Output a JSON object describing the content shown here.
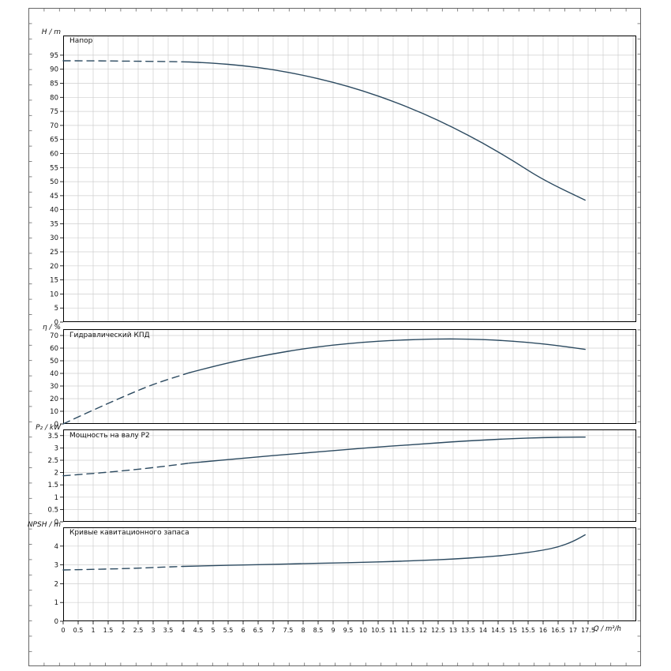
{
  "figure": {
    "bg": "#ffffff",
    "curve_color": "#2c4a60",
    "grid_color": "#cfcfcf",
    "axis_color": "#000000",
    "frame_color": "#666666"
  },
  "x_axis": {
    "label": "Q / m³/h",
    "min": 0,
    "max": 17.5,
    "tick_step": 0.5,
    "tick_labels": [
      "0",
      "0.5",
      "1",
      "1.5",
      "2",
      "2.5",
      "3",
      "3.5",
      "4",
      "4.5",
      "5",
      "5.5",
      "6",
      "6.5",
      "7",
      "7.5",
      "8",
      "8.5",
      "9",
      "9.5",
      "10",
      "10.5",
      "11",
      "11.5",
      "12",
      "12.5",
      "13",
      "13.5",
      "14",
      "14.5",
      "15",
      "15.5",
      "16",
      "16.5",
      "17",
      "17.5"
    ]
  },
  "chart_data": [
    {
      "type": "line",
      "title": "Напор",
      "ylabel": "H / m",
      "ylim": [
        0,
        102
      ],
      "grid": true,
      "yticks": [
        "0",
        "5",
        "10",
        "15",
        "20",
        "25",
        "30",
        "35",
        "40",
        "45",
        "50",
        "55",
        "60",
        "65",
        "70",
        "75",
        "80",
        "85",
        "90",
        "95"
      ],
      "series": [
        {
          "name": "head-dashed",
          "style": "dashed",
          "x": [
            0,
            1,
            2,
            3,
            4.2
          ],
          "y": [
            93,
            93,
            92.9,
            92.8,
            92.6
          ]
        },
        {
          "name": "head-solid",
          "style": "solid",
          "x": [
            4.2,
            5,
            6,
            7,
            8,
            9,
            10,
            11,
            12,
            13,
            14,
            15,
            16,
            17.4
          ],
          "y": [
            92.6,
            92.2,
            91.3,
            89.9,
            87.9,
            85.4,
            82.3,
            78.6,
            74.3,
            69.3,
            63.7,
            57.4,
            50.6,
            43.4
          ]
        }
      ]
    },
    {
      "type": "line",
      "title": "Гидравлический КПД",
      "ylabel": "η / %",
      "ylim": [
        0,
        75
      ],
      "grid": true,
      "yticks": [
        "0",
        "10",
        "20",
        "30",
        "40",
        "50",
        "60",
        "70"
      ],
      "series": [
        {
          "name": "efficiency-dashed",
          "style": "dashed",
          "x": [
            0,
            1,
            2,
            3,
            4.2
          ],
          "y": [
            0,
            11,
            21.5,
            31.5,
            40.5
          ]
        },
        {
          "name": "efficiency-solid",
          "style": "solid",
          "x": [
            4.2,
            5,
            6,
            7,
            8,
            9,
            10,
            11,
            12,
            12.7,
            13.5,
            14.5,
            15.5,
            16.5,
            17.4
          ],
          "y": [
            40.5,
            45.5,
            51,
            55.5,
            59.5,
            62.5,
            64.7,
            66.2,
            67,
            67.3,
            67.2,
            66.3,
            64.6,
            62,
            59
          ]
        }
      ]
    },
    {
      "type": "line",
      "title": "Мощность на валу P2",
      "ylabel": "P₂ / kW",
      "ylim": [
        0,
        3.75
      ],
      "grid": true,
      "yticks": [
        "0",
        "0.5",
        "1",
        "1.5",
        "2",
        "2.5",
        "3",
        "3.5"
      ],
      "series": [
        {
          "name": "power-dashed",
          "style": "dashed",
          "x": [
            0,
            1,
            2,
            3,
            4.2
          ],
          "y": [
            1.87,
            1.96,
            2.07,
            2.2,
            2.38
          ]
        },
        {
          "name": "power-solid",
          "style": "solid",
          "x": [
            4.2,
            5,
            6,
            7,
            8,
            9,
            10,
            11,
            12,
            13,
            14,
            15,
            16,
            17,
            17.4
          ],
          "y": [
            2.38,
            2.47,
            2.58,
            2.69,
            2.79,
            2.89,
            2.99,
            3.08,
            3.16,
            3.25,
            3.32,
            3.38,
            3.42,
            3.44,
            3.44
          ]
        }
      ]
    },
    {
      "type": "line",
      "title": "Кривые кавитационного запаса",
      "ylabel": "NPSH / m",
      "ylim": [
        0,
        5
      ],
      "grid": true,
      "yticks": [
        "0",
        "1",
        "2",
        "3",
        "4"
      ],
      "series": [
        {
          "name": "npsh-dashed",
          "style": "dashed",
          "x": [
            0,
            1,
            2,
            3,
            4
          ],
          "y": [
            2.73,
            2.76,
            2.8,
            2.86,
            2.92
          ]
        },
        {
          "name": "npsh-solid",
          "style": "solid",
          "x": [
            4,
            5,
            6,
            7,
            8,
            9,
            10,
            11,
            12,
            13,
            14,
            15,
            16,
            16.5,
            17,
            17.4
          ],
          "y": [
            2.92,
            2.96,
            3.0,
            3.03,
            3.07,
            3.1,
            3.14,
            3.18,
            3.24,
            3.31,
            3.41,
            3.55,
            3.78,
            3.95,
            4.25,
            4.6
          ]
        }
      ]
    }
  ]
}
